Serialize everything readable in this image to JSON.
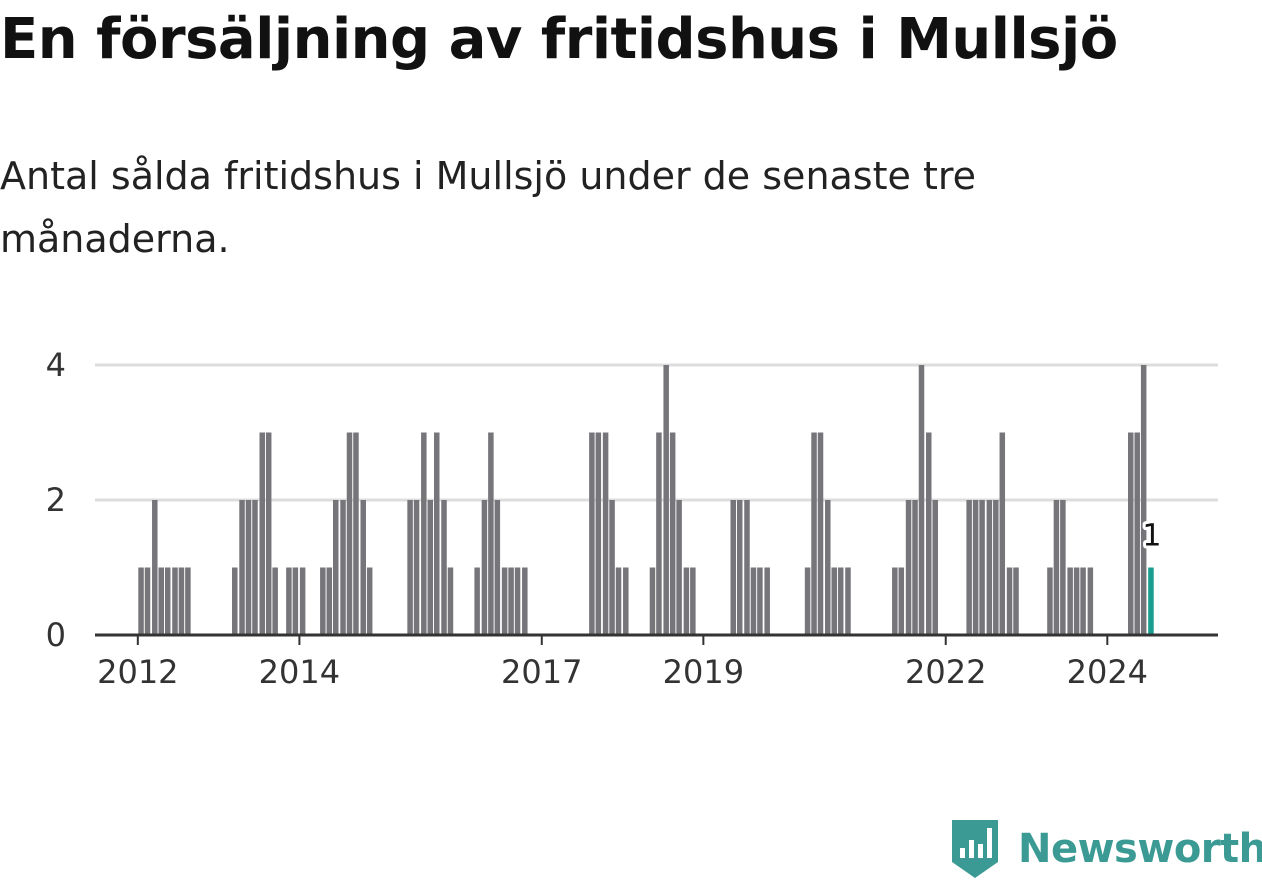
{
  "header": {
    "title": "En försäljning av fritidshus i Mullsjö",
    "subtitle": "Antal sålda fritidshus i Mullsjö under de senaste tre månaderna."
  },
  "brand": {
    "name": "Newsworthy",
    "icon": "newsworthy-logo-icon",
    "color": "#3b9b94"
  },
  "colors": {
    "bar": "#76757a",
    "highlight": "#1a9e8f",
    "grid": "#dddddd",
    "axis": "#333333"
  },
  "chart_data": {
    "type": "bar",
    "x_tick_labels": [
      "2012",
      "2014",
      "2017",
      "2019",
      "2022",
      "2024"
    ],
    "x_tick_positions": [
      2012,
      2014,
      2017,
      2019,
      2022,
      2024
    ],
    "y_ticks": [
      0,
      2,
      4
    ],
    "ylim": [
      0,
      4
    ],
    "xlim": [
      2011.47,
      2025.37
    ],
    "grid": true,
    "series": [
      {
        "values": [
          [
            2012.04,
            1
          ],
          [
            2012.12,
            1
          ],
          [
            2012.21,
            2
          ],
          [
            2012.29,
            1
          ],
          [
            2012.37,
            1
          ],
          [
            2012.46,
            1
          ],
          [
            2012.54,
            1
          ],
          [
            2012.62,
            1
          ],
          [
            2013.2,
            1
          ],
          [
            2013.29,
            2
          ],
          [
            2013.37,
            2
          ],
          [
            2013.45,
            2
          ],
          [
            2013.54,
            3
          ],
          [
            2013.62,
            3
          ],
          [
            2013.7,
            1
          ],
          [
            2013.87,
            1
          ],
          [
            2013.95,
            1
          ],
          [
            2014.04,
            1
          ],
          [
            2014.29,
            1
          ],
          [
            2014.37,
            1
          ],
          [
            2014.45,
            2
          ],
          [
            2014.54,
            2
          ],
          [
            2014.62,
            3
          ],
          [
            2014.7,
            3
          ],
          [
            2014.79,
            2
          ],
          [
            2014.87,
            1
          ],
          [
            2015.37,
            2
          ],
          [
            2015.45,
            2
          ],
          [
            2015.54,
            3
          ],
          [
            2015.62,
            2
          ],
          [
            2015.7,
            3
          ],
          [
            2015.79,
            2
          ],
          [
            2015.87,
            1
          ],
          [
            2016.2,
            1
          ],
          [
            2016.29,
            2
          ],
          [
            2016.37,
            3
          ],
          [
            2016.45,
            2
          ],
          [
            2016.54,
            1
          ],
          [
            2016.62,
            1
          ],
          [
            2016.7,
            1
          ],
          [
            2016.79,
            1
          ],
          [
            2017.62,
            3
          ],
          [
            2017.7,
            3
          ],
          [
            2017.79,
            3
          ],
          [
            2017.87,
            2
          ],
          [
            2017.95,
            1
          ],
          [
            2018.04,
            1
          ],
          [
            2018.37,
            1
          ],
          [
            2018.45,
            3
          ],
          [
            2018.54,
            4
          ],
          [
            2018.62,
            3
          ],
          [
            2018.7,
            2
          ],
          [
            2018.79,
            1
          ],
          [
            2018.87,
            1
          ],
          [
            2019.37,
            2
          ],
          [
            2019.45,
            2
          ],
          [
            2019.54,
            2
          ],
          [
            2019.62,
            1
          ],
          [
            2019.7,
            1
          ],
          [
            2019.79,
            1
          ],
          [
            2020.29,
            1
          ],
          [
            2020.37,
            3
          ],
          [
            2020.45,
            3
          ],
          [
            2020.54,
            2
          ],
          [
            2020.62,
            1
          ],
          [
            2020.7,
            1
          ],
          [
            2020.79,
            1
          ],
          [
            2021.37,
            1
          ],
          [
            2021.45,
            1
          ],
          [
            2021.54,
            2
          ],
          [
            2021.62,
            2
          ],
          [
            2021.7,
            4
          ],
          [
            2021.79,
            3
          ],
          [
            2021.87,
            2
          ],
          [
            2022.29,
            2
          ],
          [
            2022.37,
            2
          ],
          [
            2022.45,
            2
          ],
          [
            2022.54,
            2
          ],
          [
            2022.62,
            2
          ],
          [
            2022.7,
            3
          ],
          [
            2022.79,
            1
          ],
          [
            2022.87,
            1
          ],
          [
            2023.29,
            1
          ],
          [
            2023.37,
            2
          ],
          [
            2023.45,
            2
          ],
          [
            2023.54,
            1
          ],
          [
            2023.62,
            1
          ],
          [
            2023.7,
            1
          ],
          [
            2023.79,
            1
          ],
          [
            2024.29,
            3
          ],
          [
            2024.37,
            3
          ],
          [
            2024.45,
            4
          ],
          [
            2024.54,
            1
          ]
        ]
      }
    ],
    "highlight": {
      "x": 2024.54,
      "value": 1,
      "label": "1"
    }
  }
}
